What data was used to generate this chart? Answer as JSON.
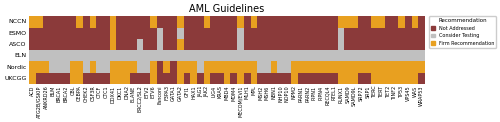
{
  "title": "AML Guidelines",
  "guidelines": [
    "NCCN",
    "ESMO",
    "ASCO",
    "ELN",
    "Nordic",
    "UKCGG"
  ],
  "genes": [
    "ACD",
    "ATG2B/GSKIP",
    "ANKRD26",
    "BLM",
    "BRCA1",
    "BRCA2",
    "CBL",
    "CEBPA",
    "CHEK2",
    "CSF3R",
    "CTCF",
    "CTC1",
    "DDX41",
    "DKC1",
    "DNA2",
    "ELANE",
    "ERCC2/SL2",
    "ETV2",
    "ETV6",
    "Fanconi",
    "F3PA3",
    "GATA1",
    "GATA2",
    "GFI1",
    "HAX1",
    "JAG1",
    "JAK2",
    "LIG4",
    "KRAS",
    "MBD4",
    "MDM4",
    "MECOM/EVI1",
    "MLH1",
    "MPL",
    "MSH2",
    "MSH6",
    "NBN1",
    "NHP10",
    "NOP10",
    "NPM2",
    "PARN1",
    "PARN2",
    "PIPN1",
    "PIPN4",
    "RECQL4",
    "RTEL1",
    "RUNX1",
    "SAMD9",
    "SAMD9L",
    "SRP72",
    "SRP1",
    "TERC",
    "TERT",
    "TET2",
    "TINF2",
    "TP53",
    "VPS45",
    "WAS",
    "WRAP53"
  ],
  "colors": {
    "Not Addressed": "#8B3A3A",
    "Consider Testing": "#C0C0C0",
    "Firm Recommendation": "#E8A020"
  },
  "values": {
    "NCCN": [
      3,
      3,
      1,
      1,
      1,
      1,
      1,
      3,
      1,
      3,
      1,
      1,
      3,
      1,
      1,
      1,
      1,
      1,
      3,
      1,
      1,
      1,
      3,
      1,
      1,
      1,
      3,
      1,
      1,
      1,
      1,
      3,
      1,
      3,
      1,
      1,
      1,
      1,
      1,
      1,
      1,
      1,
      1,
      1,
      1,
      1,
      3,
      3,
      3,
      1,
      1,
      3,
      3,
      1,
      1,
      3,
      1,
      3,
      1
    ],
    "ESMO": [
      1,
      1,
      1,
      1,
      1,
      1,
      1,
      1,
      1,
      1,
      1,
      1,
      3,
      1,
      1,
      1,
      1,
      1,
      1,
      2,
      1,
      1,
      2,
      1,
      1,
      1,
      1,
      1,
      1,
      1,
      1,
      2,
      1,
      1,
      1,
      1,
      1,
      1,
      1,
      1,
      1,
      1,
      1,
      1,
      1,
      1,
      2,
      1,
      1,
      1,
      1,
      1,
      1,
      1,
      1,
      1,
      1,
      1,
      1
    ],
    "ASCO": [
      1,
      1,
      1,
      1,
      1,
      1,
      1,
      1,
      1,
      1,
      1,
      1,
      3,
      1,
      1,
      1,
      2,
      1,
      1,
      2,
      1,
      1,
      3,
      1,
      1,
      1,
      1,
      1,
      1,
      1,
      1,
      2,
      1,
      1,
      1,
      1,
      1,
      1,
      1,
      1,
      1,
      1,
      1,
      1,
      1,
      1,
      2,
      1,
      1,
      1,
      1,
      1,
      1,
      1,
      1,
      1,
      1,
      1,
      1
    ],
    "ELN": [
      2,
      2,
      2,
      2,
      2,
      2,
      2,
      2,
      2,
      2,
      2,
      2,
      2,
      2,
      2,
      2,
      2,
      2,
      2,
      2,
      2,
      2,
      2,
      2,
      2,
      2,
      2,
      2,
      2,
      2,
      2,
      2,
      2,
      2,
      2,
      2,
      2,
      2,
      2,
      2,
      2,
      2,
      2,
      2,
      2,
      2,
      2,
      2,
      2,
      2,
      2,
      2,
      2,
      2,
      2,
      2,
      2,
      2,
      2
    ],
    "Nordic": [
      3,
      3,
      3,
      2,
      2,
      2,
      3,
      3,
      2,
      3,
      2,
      2,
      3,
      3,
      3,
      3,
      2,
      2,
      3,
      1,
      3,
      1,
      3,
      3,
      3,
      2,
      3,
      3,
      3,
      3,
      3,
      3,
      3,
      3,
      2,
      2,
      3,
      2,
      2,
      3,
      3,
      3,
      3,
      3,
      3,
      3,
      3,
      3,
      3,
      3,
      3,
      3,
      3,
      3,
      3,
      3,
      3,
      3,
      3
    ],
    "UKCGG": [
      3,
      1,
      1,
      1,
      1,
      1,
      3,
      3,
      1,
      1,
      1,
      1,
      3,
      3,
      3,
      1,
      1,
      1,
      3,
      1,
      1,
      1,
      3,
      1,
      3,
      1,
      3,
      1,
      1,
      3,
      1,
      3,
      1,
      3,
      1,
      1,
      1,
      1,
      1,
      3,
      1,
      1,
      1,
      1,
      1,
      1,
      3,
      3,
      3,
      1,
      1,
      3,
      3,
      3,
      3,
      3,
      3,
      3,
      1
    ]
  },
  "legend_title": "Recommendation",
  "background_color": "#ffffff",
  "title_fontsize": 7,
  "label_fontsize": 4.5,
  "tick_fontsize": 3.5
}
